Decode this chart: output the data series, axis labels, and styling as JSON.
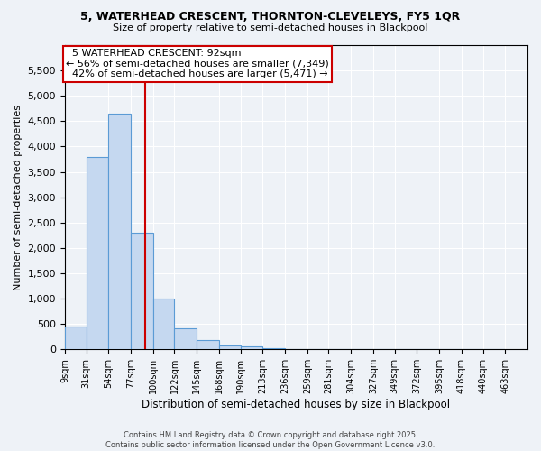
{
  "title1": "5, WATERHEAD CRESCENT, THORNTON-CLEVELEYS, FY5 1QR",
  "title2": "Size of property relative to semi-detached houses in Blackpool",
  "xlabel": "Distribution of semi-detached houses by size in Blackpool",
  "ylabel": "Number of semi-detached properties",
  "bin_labels": [
    "9sqm",
    "31sqm",
    "54sqm",
    "77sqm",
    "100sqm",
    "122sqm",
    "145sqm",
    "168sqm",
    "190sqm",
    "213sqm",
    "236sqm",
    "259sqm",
    "281sqm",
    "304sqm",
    "327sqm",
    "349sqm",
    "372sqm",
    "395sqm",
    "418sqm",
    "440sqm",
    "463sqm"
  ],
  "bin_edges": [
    9,
    31,
    54,
    77,
    100,
    122,
    145,
    168,
    190,
    213,
    236,
    259,
    281,
    304,
    327,
    349,
    372,
    395,
    418,
    440,
    463
  ],
  "bar_values": [
    450,
    3800,
    4650,
    2300,
    1000,
    420,
    180,
    80,
    60,
    30,
    0,
    0,
    0,
    0,
    0,
    0,
    0,
    0,
    0,
    0
  ],
  "bar_color": "#c5d8f0",
  "bar_edge_color": "#5b9bd5",
  "property_size": 92,
  "property_label": "5 WATERHEAD CRESCENT: 92sqm",
  "pct_smaller": 56,
  "pct_larger": 42,
  "n_smaller": 7349,
  "n_larger": 5471,
  "vline_color": "#cc0000",
  "annotation_box_color": "#cc0000",
  "ylim": [
    0,
    6000
  ],
  "yticks": [
    0,
    500,
    1000,
    1500,
    2000,
    2500,
    3000,
    3500,
    4000,
    4500,
    5000,
    5500
  ],
  "footer1": "Contains HM Land Registry data © Crown copyright and database right 2025.",
  "footer2": "Contains public sector information licensed under the Open Government Licence v3.0.",
  "bg_color": "#eef2f7"
}
